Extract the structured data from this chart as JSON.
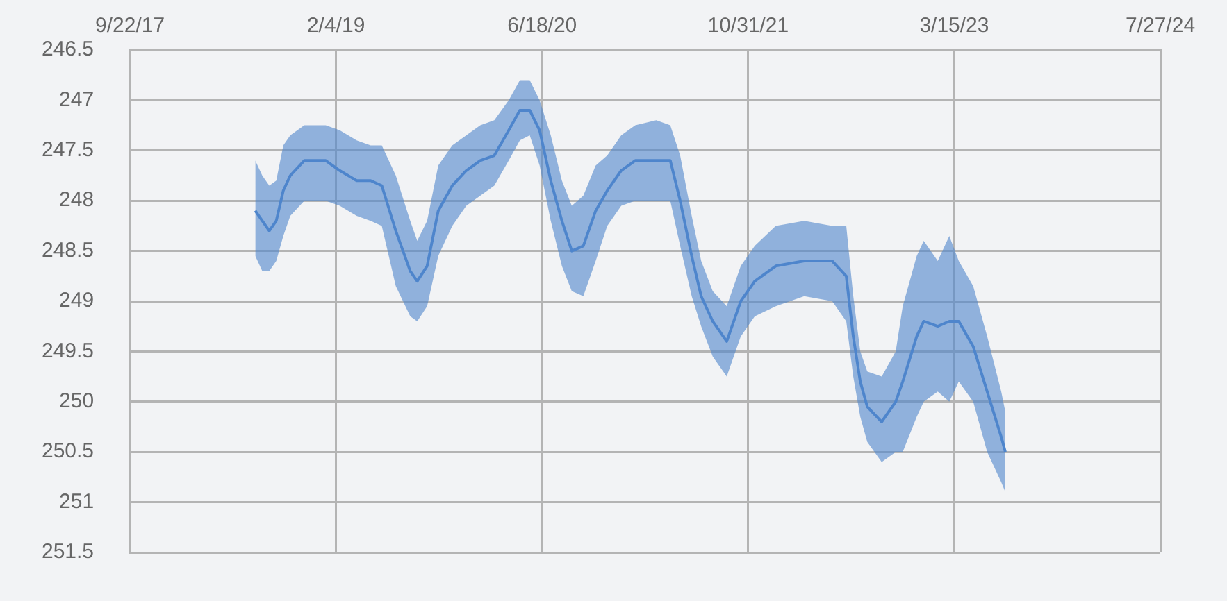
{
  "chart_data": {
    "type": "line",
    "x": [
      "2018-07-23",
      "2018-08-09",
      "2018-08-26",
      "2018-09-12",
      "2018-09-29",
      "2018-10-16",
      "2018-11-19",
      "2019-01-10",
      "2019-02-13",
      "2019-03-26",
      "2019-04-29",
      "2019-05-26",
      "2019-06-29",
      "2019-08-03",
      "2019-08-20",
      "2019-09-13",
      "2019-10-10",
      "2019-11-13",
      "2019-12-17",
      "2020-01-20",
      "2020-02-23",
      "2020-03-29",
      "2020-04-25",
      "2020-05-19",
      "2020-06-12",
      "2020-07-09",
      "2020-08-05",
      "2020-08-29",
      "2020-09-26",
      "2020-10-26",
      "2020-11-23",
      "2020-12-27",
      "2021-01-30",
      "2021-03-22",
      "2021-04-25",
      "2021-05-19",
      "2021-06-16",
      "2021-07-09",
      "2021-08-06",
      "2021-09-09",
      "2021-10-13",
      "2021-11-16",
      "2022-01-06",
      "2022-03-16",
      "2022-05-23",
      "2022-06-26",
      "2022-07-13",
      "2022-07-30",
      "2022-08-16",
      "2022-09-20",
      "2022-10-24",
      "2022-11-10",
      "2022-12-14",
      "2022-12-31",
      "2023-02-03",
      "2023-03-03",
      "2023-03-26",
      "2023-04-30",
      "2023-06-03",
      "2023-07-07",
      "2023-07-17"
    ],
    "series": [
      {
        "color": "#4f86cc",
        "values": [
          248.1,
          248.2,
          248.3,
          248.2,
          247.9,
          247.75,
          247.6,
          247.6,
          247.7,
          247.8,
          247.8,
          247.85,
          248.3,
          248.7,
          248.8,
          248.65,
          248.1,
          247.85,
          247.7,
          247.6,
          247.55,
          247.3,
          247.1,
          247.1,
          247.3,
          247.8,
          248.2,
          248.5,
          248.45,
          248.1,
          247.9,
          247.7,
          247.6,
          247.6,
          247.6,
          248.0,
          248.55,
          248.95,
          249.2,
          249.4,
          249.0,
          248.8,
          248.65,
          248.6,
          248.6,
          248.75,
          249.35,
          249.8,
          250.05,
          250.2,
          250.0,
          249.8,
          249.35,
          249.2,
          249.25,
          249.2,
          249.2,
          249.45,
          249.9,
          250.35,
          250.5
        ],
        "lower": [
          247.6,
          247.75,
          247.85,
          247.8,
          247.45,
          247.35,
          247.25,
          247.25,
          247.3,
          247.4,
          247.45,
          247.45,
          247.75,
          248.2,
          248.4,
          248.2,
          247.65,
          247.45,
          247.35,
          247.25,
          247.2,
          247.0,
          246.8,
          246.8,
          247.0,
          247.35,
          247.8,
          248.05,
          247.95,
          247.65,
          247.55,
          247.35,
          247.25,
          247.2,
          247.25,
          247.55,
          248.15,
          248.6,
          248.9,
          249.05,
          248.65,
          248.45,
          248.25,
          248.2,
          248.25,
          248.25,
          248.95,
          249.5,
          249.7,
          249.75,
          249.5,
          249.05,
          248.55,
          248.4,
          248.6,
          248.35,
          248.6,
          248.85,
          249.35,
          249.9,
          250.1
        ],
        "upper": [
          248.55,
          248.7,
          248.7,
          248.6,
          248.35,
          248.15,
          248.0,
          248.0,
          248.05,
          248.15,
          248.2,
          248.25,
          248.85,
          249.15,
          249.2,
          249.05,
          248.55,
          248.25,
          248.05,
          247.95,
          247.85,
          247.6,
          247.4,
          247.35,
          247.65,
          248.2,
          248.65,
          248.9,
          248.95,
          248.6,
          248.25,
          248.05,
          248.0,
          248.0,
          248.0,
          248.45,
          248.95,
          249.25,
          249.55,
          249.75,
          249.35,
          249.15,
          249.05,
          248.95,
          249.0,
          249.2,
          249.75,
          250.15,
          250.4,
          250.6,
          250.5,
          250.5,
          250.15,
          250.0,
          249.9,
          250.0,
          249.8,
          250.0,
          250.5,
          250.8,
          250.9
        ]
      }
    ],
    "xlim": [
      "2017-09-22",
      "2024-07-27"
    ],
    "xticks": [
      {
        "value": "2017-09-22",
        "label": "9/22/17"
      },
      {
        "value": "2019-02-04",
        "label": "2/4/19"
      },
      {
        "value": "2020-06-18",
        "label": "6/18/20"
      },
      {
        "value": "2021-10-31",
        "label": "10/31/21"
      },
      {
        "value": "2023-03-15",
        "label": "3/15/23"
      },
      {
        "value": "2024-07-27",
        "label": "7/27/24"
      }
    ],
    "ylim": [
      251.5,
      246.5
    ],
    "yticks": [
      246.5,
      247,
      247.5,
      248,
      248.5,
      249,
      249.5,
      250,
      250.5,
      251,
      251.5
    ],
    "grid": true
  }
}
